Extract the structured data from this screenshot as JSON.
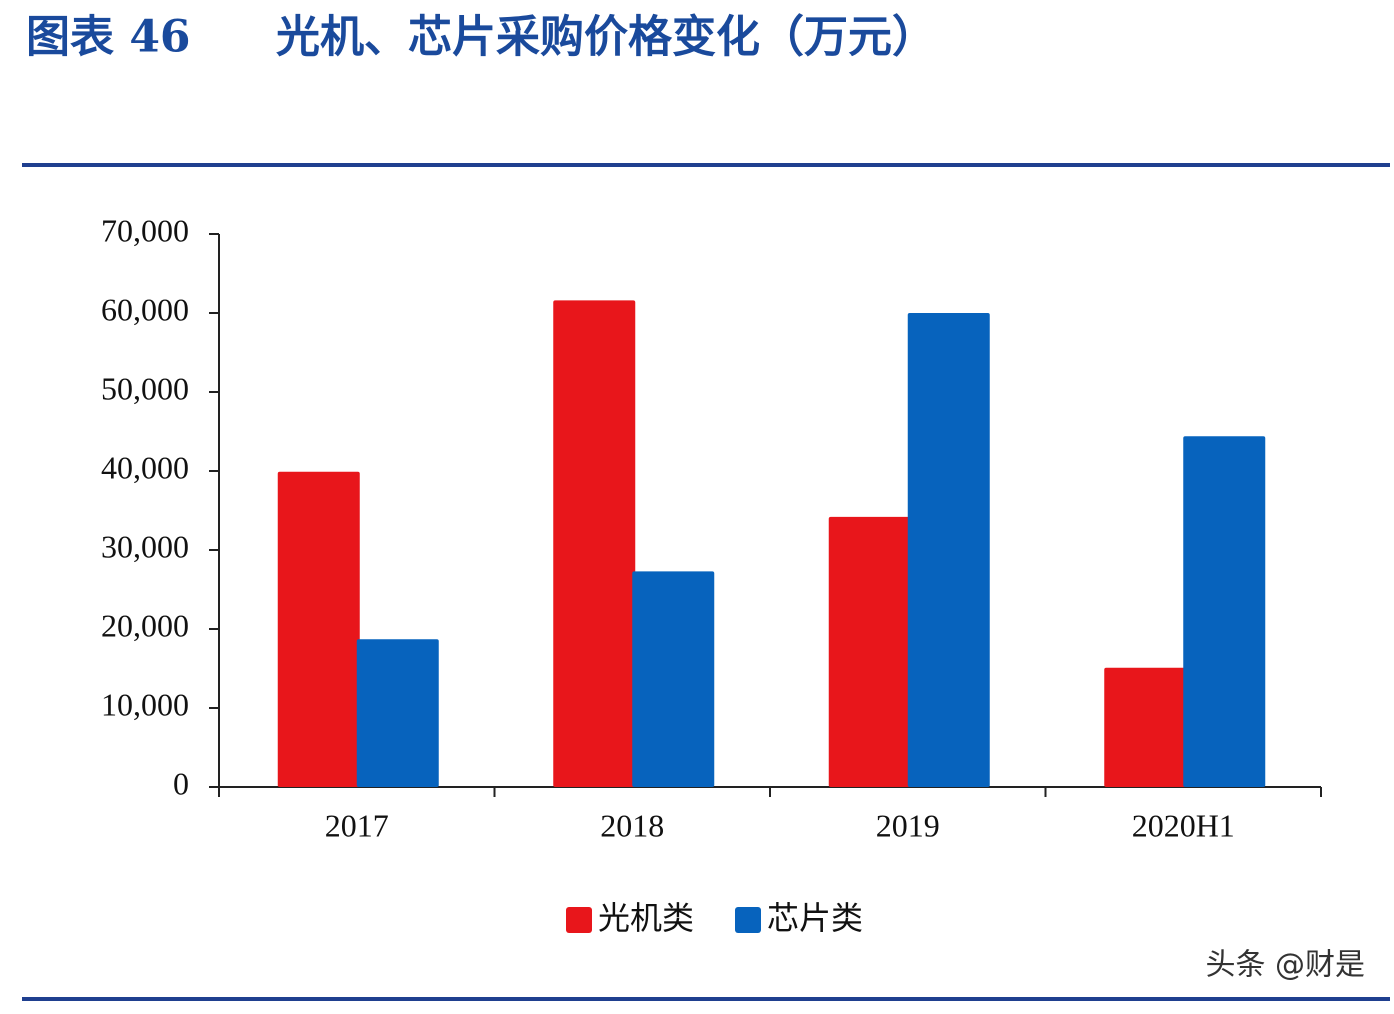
{
  "chart_data": {
    "type": "bar",
    "figure_label": "图表 46",
    "title": "光机、芯片采购价格变化（万元）",
    "categories": [
      "2017",
      "2018",
      "2019",
      "2020H1"
    ],
    "series": [
      {
        "name": "光机类",
        "color": "#e8161b",
        "values": [
          39900,
          61600,
          34200,
          15100
        ]
      },
      {
        "name": "芯片类",
        "color": "#0763bd",
        "values": [
          18700,
          27300,
          60000,
          44400
        ]
      }
    ],
    "ylim": [
      0,
      70000
    ],
    "yticks": [
      0,
      {
        "value": 10000,
        "label": "10,000"
      },
      {
        "value": 20000,
        "label": "20,000"
      },
      {
        "value": 30000,
        "label": "30,000"
      },
      {
        "value": 40000,
        "label": "40,000"
      },
      {
        "value": 50000,
        "label": "50,000"
      },
      {
        "value": 60000,
        "label": "60,000"
      },
      {
        "value": 70000,
        "label": "70,000"
      }
    ],
    "grid": false,
    "legend": "bottom",
    "watermark": "头条 @财是"
  }
}
